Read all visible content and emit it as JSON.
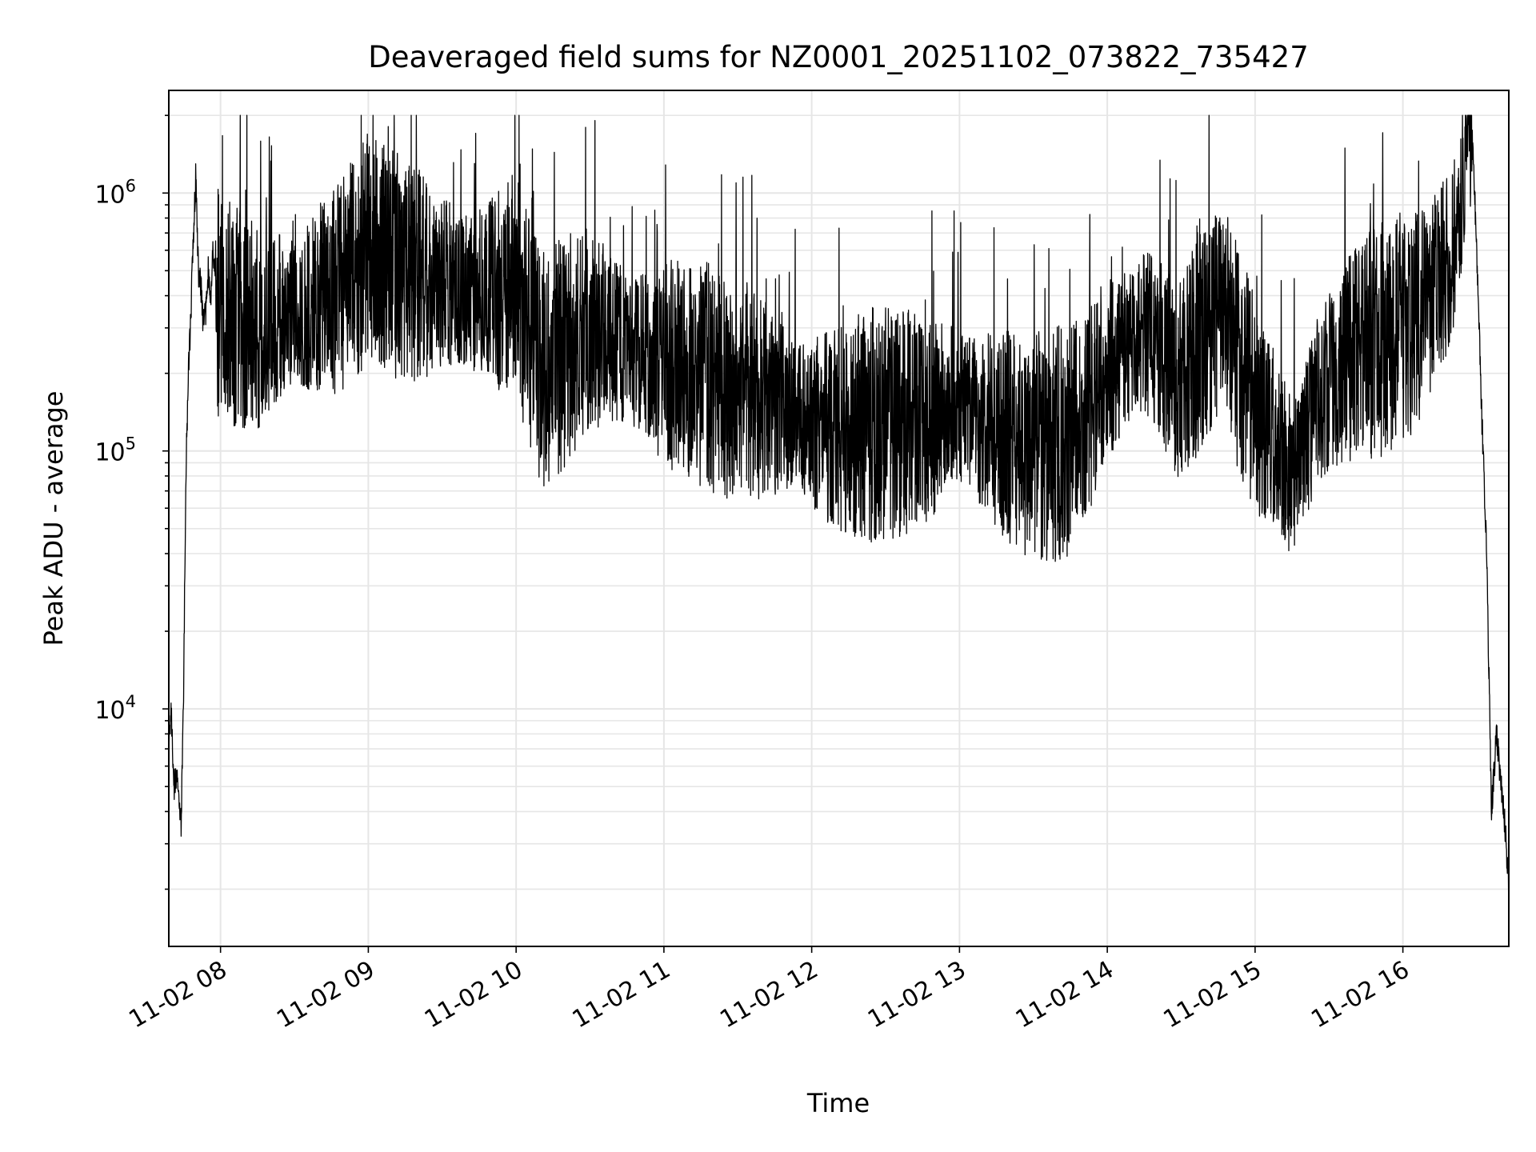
{
  "chart_data": {
    "type": "line",
    "title": "Deaveraged field sums for NZ0001_20251102_073822_735427",
    "xlabel": "Time",
    "ylabel": "Peak ADU - average",
    "x_axis": {
      "kind": "datetime",
      "range": [
        "2025-11-02 07:39",
        "2025-11-02 16:43"
      ],
      "ticks": [
        "2025-11-02 08:00",
        "2025-11-02 09:00",
        "2025-11-02 10:00",
        "2025-11-02 11:00",
        "2025-11-02 12:00",
        "2025-11-02 13:00",
        "2025-11-02 14:00",
        "2025-11-02 15:00",
        "2025-11-02 16:00"
      ],
      "tick_labels": [
        "11-02 08",
        "11-02 09",
        "11-02 10",
        "11-02 11",
        "11-02 12",
        "11-02 13",
        "11-02 14",
        "11-02 15",
        "11-02 16"
      ],
      "tick_rotation": 30
    },
    "y_axis": {
      "scale": "log",
      "range": [
        1200,
        2500000
      ],
      "ticks": [
        10000,
        100000,
        1000000
      ],
      "tick_labels": [
        {
          "base": "10",
          "exp": "4"
        },
        {
          "base": "10",
          "exp": "5"
        },
        {
          "base": "10",
          "exp": "6"
        }
      ]
    },
    "grid": true,
    "legend": "none",
    "line_color": "#000000",
    "grid_color": "#e6e6e6",
    "series": [
      {
        "x": [
          "2025-11-02 07:39",
          "2025-11-02 07:40",
          "2025-11-02 07:41",
          "2025-11-02 07:42",
          "2025-11-02 07:43",
          "2025-11-02 07:44",
          "2025-11-02 07:45",
          "2025-11-02 07:46",
          "2025-11-02 07:47",
          "2025-11-02 07:48",
          "2025-11-02 07:49",
          "2025-11-02 07:50",
          "2025-11-02 07:51",
          "2025-11-02 07:52",
          "2025-11-02 07:53",
          "2025-11-02 07:54",
          "2025-11-02 07:55",
          "2025-11-02 07:56",
          "2025-11-02 07:57",
          "2025-11-02 07:58",
          "2025-11-02 08:00",
          "2025-11-02 08:15",
          "2025-11-02 08:30",
          "2025-11-02 08:45",
          "2025-11-02 09:00",
          "2025-11-02 09:15",
          "2025-11-02 09:30",
          "2025-11-02 09:45",
          "2025-11-02 10:00",
          "2025-11-02 10:10",
          "2025-11-02 10:30",
          "2025-11-02 10:45",
          "2025-11-02 11:00",
          "2025-11-02 11:15",
          "2025-11-02 11:30",
          "2025-11-02 11:45",
          "2025-11-02 12:00",
          "2025-11-02 12:15",
          "2025-11-02 12:30",
          "2025-11-02 12:45",
          "2025-11-02 13:00",
          "2025-11-02 13:15",
          "2025-11-02 13:30",
          "2025-11-02 13:45",
          "2025-11-02 14:00",
          "2025-11-02 14:15",
          "2025-11-02 14:30",
          "2025-11-02 14:45",
          "2025-11-02 15:00",
          "2025-11-02 15:15",
          "2025-11-02 15:30",
          "2025-11-02 15:45",
          "2025-11-02 16:00",
          "2025-11-02 16:10",
          "2025-11-02 16:20",
          "2025-11-02 16:28",
          "2025-11-02 16:30",
          "2025-11-02 16:32",
          "2025-11-02 16:34",
          "2025-11-02 16:36",
          "2025-11-02 16:38",
          "2025-11-02 16:40",
          "2025-11-02 16:42",
          "2025-11-02 16:43"
        ],
        "y": [
          7000,
          9800,
          5000,
          5500,
          4500,
          3600,
          12000,
          90000,
          200000,
          350000,
          700000,
          1200000,
          500000,
          450000,
          300000,
          350000,
          500000,
          400000,
          600000,
          450000,
          350000,
          300000,
          350000,
          400000,
          600000,
          500000,
          450000,
          400000,
          450000,
          200000,
          300000,
          250000,
          220000,
          200000,
          180000,
          150000,
          130000,
          120000,
          130000,
          130000,
          150000,
          120000,
          100000,
          110000,
          200000,
          300000,
          200000,
          400000,
          150000,
          80000,
          200000,
          250000,
          300000,
          350000,
          600000,
          1800000,
          600000,
          140000,
          40000,
          4000,
          8000,
          5000,
          3000,
          2000
        ]
      }
    ]
  }
}
